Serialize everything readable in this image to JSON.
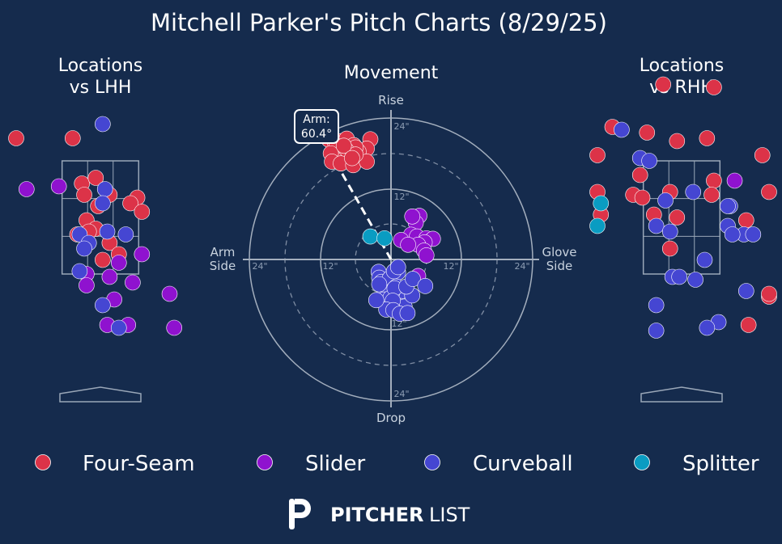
{
  "title": "Mitchell Parker's Pitch Charts (8/29/25)",
  "panels": {
    "lhh_title_1": "Locations",
    "lhh_title_2": "vs LHH",
    "movement_title": "Movement",
    "rhh_title_1": "Locations",
    "rhh_title_2": "vs RHH"
  },
  "movement_labels": {
    "rise": "Rise",
    "drop": "Drop",
    "arm_1": "Arm",
    "arm_2": "Side",
    "glove_1": "Glove",
    "glove_2": "Side",
    "arm_angle_1": "Arm:",
    "arm_angle_2": "60.4°",
    "tick_12": "12\"",
    "tick_24": "24\""
  },
  "colors": {
    "background": "#152b4d",
    "Four-Seam": "#dc3348",
    "Slider": "#8f12cf",
    "Curveball": "#4546d2",
    "Splitter": "#0a9cc2"
  },
  "legend": [
    {
      "name": "Four-Seam",
      "color": "#dc3348"
    },
    {
      "name": "Slider",
      "color": "#8f12cf"
    },
    {
      "name": "Curveball",
      "color": "#4546d2"
    },
    {
      "name": "Splitter",
      "color": "#0a9cc2"
    }
  ],
  "logo": {
    "bold": "PITCHER",
    "light": "LIST"
  },
  "chart_data": [
    {
      "type": "scatter",
      "title": "Locations vs LHH",
      "xlim": [
        -2.4,
        2.4
      ],
      "ylim": [
        0,
        5
      ],
      "strike_zone": {
        "x": [
          -0.83,
          0.83
        ],
        "y": [
          1.5,
          3.5
        ]
      },
      "series": [
        {
          "name": "Four-Seam",
          "points": [
            [
              -1.9,
              3.9
            ],
            [
              -0.6,
              3.9
            ],
            [
              -0.4,
              3.1
            ],
            [
              -0.1,
              3.2
            ],
            [
              -0.35,
              2.9
            ],
            [
              0.2,
              2.9
            ],
            [
              -0.05,
              2.7
            ],
            [
              0.8,
              2.85
            ],
            [
              0.65,
              2.75
            ],
            [
              0.9,
              2.6
            ],
            [
              -0.3,
              2.45
            ],
            [
              -0.1,
              2.3
            ],
            [
              -0.5,
              2.2
            ],
            [
              0.2,
              2.05
            ],
            [
              0.4,
              1.85
            ],
            [
              0.05,
              1.75
            ],
            [
              -0.25,
              2.25
            ]
          ]
        },
        {
          "name": "Slider",
          "points": [
            [
              -1.6,
              3.0
            ],
            [
              -0.9,
              3.05
            ],
            [
              0.9,
              1.85
            ],
            [
              0.4,
              1.7
            ],
            [
              1.5,
              1.15
            ],
            [
              0.2,
              1.45
            ],
            [
              -0.3,
              1.5
            ],
            [
              -0.3,
              1.3
            ],
            [
              0.6,
              0.6
            ],
            [
              0.15,
              0.6
            ],
            [
              1.6,
              0.55
            ],
            [
              0.7,
              1.35
            ],
            [
              0.3,
              1.05
            ]
          ]
        },
        {
          "name": "Curveball",
          "points": [
            [
              0.05,
              4.15
            ],
            [
              0.1,
              3.0
            ],
            [
              0.05,
              2.75
            ],
            [
              -0.45,
              2.2
            ],
            [
              -0.25,
              2.05
            ],
            [
              0.15,
              2.25
            ],
            [
              0.55,
              2.2
            ],
            [
              -0.45,
              1.55
            ],
            [
              0.05,
              0.95
            ],
            [
              0.4,
              0.55
            ],
            [
              -0.35,
              1.95
            ]
          ]
        }
      ]
    },
    {
      "type": "scatter",
      "title": "Movement",
      "xlabel_left": "Arm Side",
      "xlabel_right": "Glove Side",
      "ylabel_top": "Rise",
      "ylabel_bottom": "Drop",
      "units": "inches",
      "rings": [
        12,
        24
      ],
      "dashed_rings": [
        6,
        18
      ],
      "arm_angle_deg": 60.4,
      "series": [
        {
          "name": "Four-Seam",
          "points": [
            [
              -12,
              21
            ],
            [
              -10.5,
              20.3
            ],
            [
              -9.5,
              19.8
            ],
            [
              -8.3,
              20.1
            ],
            [
              -7.5,
              20.5
            ],
            [
              -6.3,
              19.4
            ],
            [
              -3.5,
              20.4
            ],
            [
              -4.1,
              18.8
            ],
            [
              -5.5,
              18.3
            ],
            [
              -6.0,
              19.0
            ],
            [
              -7.6,
              18.6
            ],
            [
              -9.2,
              19.3
            ],
            [
              -8.2,
              17.7
            ],
            [
              -9.5,
              17.0
            ],
            [
              -10.2,
              18.0
            ],
            [
              -10.0,
              16.6
            ],
            [
              -8.5,
              16.3
            ],
            [
              -6.4,
              16.0
            ],
            [
              -4.1,
              16.6
            ],
            [
              -6.0,
              17.8
            ],
            [
              -8.0,
              19.3
            ],
            [
              -6.6,
              17.2
            ]
          ]
        },
        {
          "name": "Slider",
          "points": [
            [
              4.8,
              7.4
            ],
            [
              4.2,
              6.2
            ],
            [
              3.4,
              4.2
            ],
            [
              4.4,
              3.9
            ],
            [
              6.0,
              3.6
            ],
            [
              7.1,
              3.5
            ],
            [
              5.7,
              2.9
            ],
            [
              4.6,
              2.5
            ],
            [
              1.7,
              3.3
            ],
            [
              2.9,
              2.5
            ],
            [
              5.6,
              1.5
            ],
            [
              6.0,
              0.7
            ],
            [
              4.6,
              -2.8
            ],
            [
              3.6,
              7.3
            ]
          ]
        },
        {
          "name": "Curveball",
          "points": [
            [
              -2.1,
              -2.1
            ],
            [
              -2.0,
              -3.1
            ],
            [
              -1.6,
              -3.8
            ],
            [
              -0.2,
              -3.2
            ],
            [
              1.2,
              -2.2
            ],
            [
              1.4,
              -5.6
            ],
            [
              1.6,
              -7.9
            ],
            [
              2.3,
              -8.0
            ],
            [
              0.9,
              -4.6
            ],
            [
              0.2,
              -5.6
            ],
            [
              -0.4,
              -5.6
            ],
            [
              -1.1,
              -5.6
            ],
            [
              -2.0,
              -4.2
            ],
            [
              -1.2,
              -6.8
            ],
            [
              -0.1,
              -6.5
            ],
            [
              0.6,
              -4.9
            ],
            [
              0.3,
              -7.0
            ],
            [
              -0.8,
              -8.5
            ],
            [
              0.4,
              -8.6
            ],
            [
              1.5,
              -9.2
            ],
            [
              2.8,
              -9.1
            ],
            [
              3.6,
              -6.1
            ],
            [
              2.6,
              -4.6
            ],
            [
              3.7,
              -3.3
            ],
            [
              5.8,
              -4.5
            ],
            [
              -2.5,
              -6.9
            ],
            [
              0.5,
              -2.0
            ],
            [
              1.2,
              -1.3
            ]
          ]
        },
        {
          "name": "Splitter",
          "points": [
            [
              -3.5,
              3.9
            ],
            [
              -1.1,
              3.6
            ]
          ]
        }
      ]
    },
    {
      "type": "scatter",
      "title": "Locations vs RHH",
      "xlim": [
        -2.4,
        2.4
      ],
      "ylim": [
        0,
        5
      ],
      "strike_zone": {
        "x": [
          -0.83,
          0.83
        ],
        "y": [
          1.5,
          3.5
        ]
      },
      "series": [
        {
          "name": "Four-Seam",
          "points": [
            [
              -0.4,
              4.85
            ],
            [
              0.7,
              4.8
            ],
            [
              -1.5,
              4.1
            ],
            [
              -0.75,
              4.0
            ],
            [
              0.55,
              3.9
            ],
            [
              -0.1,
              3.85
            ],
            [
              1.75,
              3.6
            ],
            [
              -1.95,
              3.6
            ],
            [
              -0.9,
              3.25
            ],
            [
              0.7,
              3.15
            ],
            [
              -1.95,
              2.95
            ],
            [
              -1.05,
              2.9
            ],
            [
              -0.85,
              2.85
            ],
            [
              -0.25,
              2.95
            ],
            [
              0.65,
              2.9
            ],
            [
              2.4,
              2.95
            ],
            [
              -1.75,
              2.55
            ],
            [
              -0.6,
              2.55
            ],
            [
              -0.1,
              2.5
            ],
            [
              1.4,
              2.45
            ],
            [
              -0.25,
              1.95
            ],
            [
              2.05,
              1.1
            ],
            [
              2.5,
              1.15
            ],
            [
              1.45,
              0.6
            ]
          ]
        },
        {
          "name": "Slider",
          "points": [
            [
              1.15,
              3.15
            ]
          ]
        },
        {
          "name": "Curveball",
          "points": [
            [
              -1.3,
              4.05
            ],
            [
              -0.9,
              3.55
            ],
            [
              -0.7,
              3.5
            ],
            [
              0.25,
              2.95
            ],
            [
              -0.35,
              2.8
            ],
            [
              1.05,
              2.7
            ],
            [
              1.0,
              2.7
            ],
            [
              -0.55,
              2.35
            ],
            [
              -0.25,
              2.25
            ],
            [
              1.0,
              2.35
            ],
            [
              1.35,
              2.2
            ],
            [
              1.55,
              2.2
            ],
            [
              1.1,
              2.2
            ],
            [
              0.5,
              1.75
            ],
            [
              -0.2,
              1.45
            ],
            [
              -0.05,
              1.45
            ],
            [
              0.3,
              1.4
            ],
            [
              1.4,
              1.2
            ],
            [
              -0.55,
              0.95
            ],
            [
              0.8,
              0.65
            ],
            [
              0.55,
              0.55
            ],
            [
              -0.55,
              0.5
            ]
          ]
        },
        {
          "name": "Splitter",
          "points": [
            [
              -1.75,
              2.75
            ],
            [
              -2.4,
              2.35
            ]
          ]
        }
      ]
    }
  ]
}
